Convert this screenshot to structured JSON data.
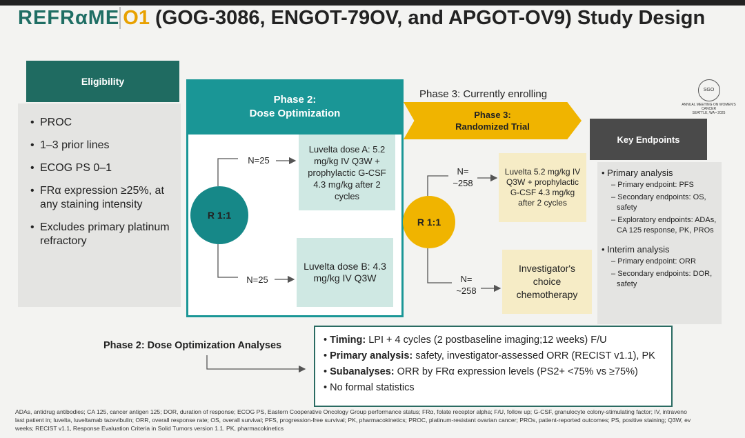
{
  "title": {
    "brand": "REFRαME",
    "brand_suffix": "O1",
    "rest": "(GOG-3086, ENGOT-79OV, and APGOT-OV9) Study Design"
  },
  "logo": {
    "name": "SGO",
    "line1": "ANNUAL MEETING ON WOMEN'S CANCER",
    "line2": "SEATTLE, WA • 2025"
  },
  "eligibility": {
    "header": "Eligibility",
    "items": [
      "PROC",
      "1–3 prior lines",
      "ECOG PS 0–1",
      "FRα expression ≥25%, at any staining intensity",
      "Excludes primary platinum refractory"
    ]
  },
  "phase2": {
    "header_line1": "Phase 2:",
    "header_line2": "Dose Optimization",
    "randomization": "R 1:1",
    "arms": [
      {
        "n": "N=25",
        "label": "Luvelta dose A: 5.2 mg/kg IV Q3W + prophylactic G-CSF 4.3 mg/kg after 2 cycles"
      },
      {
        "n": "N=25",
        "label": "Luvelta dose B: 4.3 mg/kg IV Q3W"
      }
    ]
  },
  "phase3": {
    "note": "Phase 3: Currently enrolling",
    "header_line1": "Phase 3:",
    "header_line2": "Randomized Trial",
    "randomization": "R 1:1",
    "arms": [
      {
        "n": "N= ~258",
        "label": "Luvelta 5.2 mg/kg IV Q3W + prophylactic G-CSF 4.3 mg/kg after 2 cycles"
      },
      {
        "n": "N= ~258",
        "label": "Investigator's choice chemotherapy"
      }
    ]
  },
  "endpoints": {
    "header": "Key Endpoints",
    "groups": [
      {
        "title": "Primary analysis",
        "items": [
          "Primary endpoint: PFS",
          "Secondary endpoints: OS, safety",
          "Exploratory endpoints: ADAs, CA 125 response, PK, PROs"
        ]
      },
      {
        "title": "Interim analysis",
        "items": [
          "Primary endpoint: ORR",
          "Secondary endpoints: DOR, safety"
        ]
      }
    ]
  },
  "analyses": {
    "label": "Phase 2: Dose Optimization Analyses",
    "items": [
      {
        "lead": "Timing:",
        "text": "LPI + 4 cycles (2 postbaseline imaging;12 weeks) F/U"
      },
      {
        "lead": "Primary analysis:",
        "text": "safety, investigator-assessed ORR (RECIST v1.1), PK"
      },
      {
        "lead": "Subanalyses:",
        "text": "ORR by FRα expression levels (PS2+ <75% vs ≥75%)"
      },
      {
        "lead": "",
        "text": "No formal statistics"
      }
    ]
  },
  "footnote": [
    "ADAs, antidrug antibodies; CA 125, cancer antigen 125; DOR, duration of response; ECOG PS, Eastern Cooperative Oncology Group performance status; FRα, folate receptor alpha; F/U, follow up; G-CSF, granulocyte colony-stimulating factor; IV, intraveno",
    "last patient in; luvelta, luveltamab tazevibulin; ORR, overall response rate; OS, overall survival; PFS, progression-free survival; PK, pharmacokinetics; PROC, platinum-resistant ovarian cancer; PROs, patient-reported outcomes; PS, positive staining; Q3W, ev",
    "weeks; RECIST v1.1, Response Evaluation Criteria in Solid Tumors version 1.1. PK, pharmacokinetics"
  ]
}
